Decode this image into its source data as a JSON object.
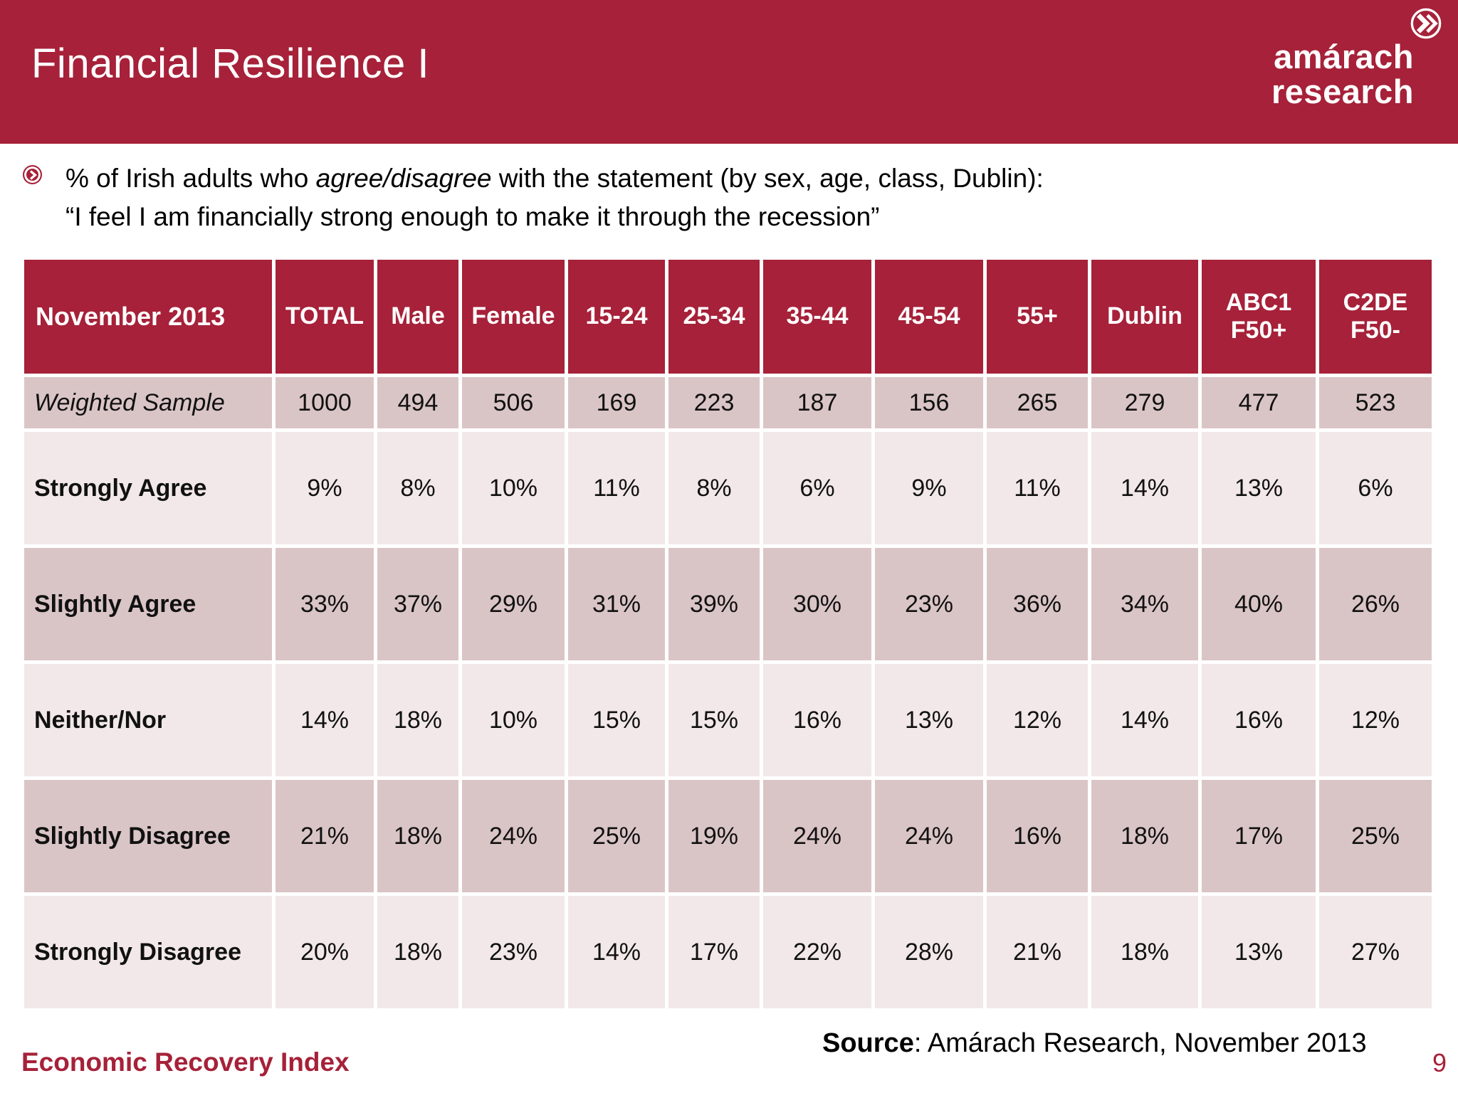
{
  "slide": {
    "title": "Financial Resilience I",
    "footer_left": "Economic Recovery Index",
    "source_label": "Source",
    "source_rest": ": Amárach Research, November 2013",
    "page_number": "9"
  },
  "logo": {
    "line1": "amárach",
    "line2": "research",
    "mark": "double-chevron-circle"
  },
  "bullet": {
    "icon": "chevron-circle",
    "line1_pre": "% of Irish adults who ",
    "line1_italic": "agree/disagree",
    "line1_post": " with the statement (by sex, age, class, Dublin):",
    "line2": "“I feel I am financially strong enough to make it through the recession”"
  },
  "table": {
    "header": [
      "November 2013",
      "TOTAL",
      "Male",
      "Female",
      "15-24",
      "25-34",
      "35-44",
      "45-54",
      "55+",
      "Dublin",
      "ABC1\nF50+",
      "C2DE\nF50-"
    ],
    "rows": [
      {
        "label": "Weighted Sample",
        "kind": "sample",
        "values": [
          "1000",
          "494",
          "506",
          "169",
          "223",
          "187",
          "156",
          "265",
          "279",
          "477",
          "523"
        ]
      },
      {
        "label": "Strongly Agree",
        "kind": "data",
        "values": [
          "9%",
          "8%",
          "10%",
          "11%",
          "8%",
          "6%",
          "9%",
          "11%",
          "14%",
          "13%",
          "6%"
        ]
      },
      {
        "label": "Slightly Agree",
        "kind": "data",
        "values": [
          "33%",
          "37%",
          "29%",
          "31%",
          "39%",
          "30%",
          "23%",
          "36%",
          "34%",
          "40%",
          "26%"
        ]
      },
      {
        "label": "Neither/Nor",
        "kind": "data",
        "values": [
          "14%",
          "18%",
          "10%",
          "15%",
          "15%",
          "16%",
          "13%",
          "12%",
          "14%",
          "16%",
          "12%"
        ]
      },
      {
        "label": "Slightly Disagree",
        "kind": "data",
        "values": [
          "21%",
          "18%",
          "24%",
          "25%",
          "19%",
          "24%",
          "24%",
          "16%",
          "18%",
          "17%",
          "25%"
        ]
      },
      {
        "label": "Strongly Disagree",
        "kind": "data",
        "values": [
          "20%",
          "18%",
          "23%",
          "14%",
          "17%",
          "22%",
          "28%",
          "21%",
          "18%",
          "13%",
          "27%"
        ]
      }
    ]
  },
  "colors": {
    "brand_red": "#A62139",
    "row_dark": "#DAC5C6",
    "row_light": "#F2E8E9"
  }
}
